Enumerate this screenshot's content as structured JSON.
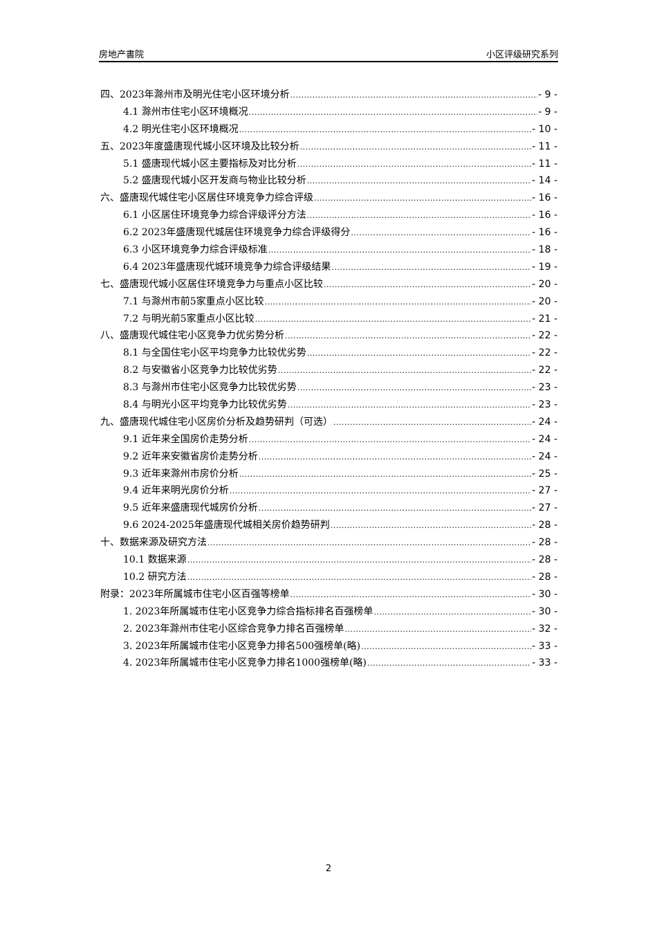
{
  "header": {
    "left": "房地产書院",
    "right": "小区评级研究系列"
  },
  "toc": [
    {
      "level": 1,
      "title": "四、2023年滁州市及明光住宅小区环境分析",
      "page": "- 9 -"
    },
    {
      "level": 2,
      "title": "4.1 滁州市住宅小区环境概况",
      "page": "- 9 -"
    },
    {
      "level": 2,
      "title": "4.2 明光住宅小区环境概况",
      "page": "- 10 -"
    },
    {
      "level": 1,
      "title": "五、2023年度盛唐现代城小区环境及比较分析",
      "page": "- 11 -"
    },
    {
      "level": 2,
      "title": "5.1 盛唐现代城小区主要指标及对比分析",
      "page": "- 11 -"
    },
    {
      "level": 2,
      "title": "5.2 盛唐现代城小区开发商与物业比较分析",
      "page": "- 14 -"
    },
    {
      "level": 1,
      "title": "六、盛唐现代城住宅小区居住环境竞争力综合评级",
      "page": "- 16 -"
    },
    {
      "level": 2,
      "title": "6.1 小区居住环境竞争力综合评级评分方法",
      "page": "- 16 -"
    },
    {
      "level": 2,
      "title": "6.2 2023年盛唐现代城居住环境竞争力综合评级得分",
      "page": "- 16 -"
    },
    {
      "level": 2,
      "title": "6.3 小区环境竞争力综合评级标准",
      "page": "- 18 -"
    },
    {
      "level": 2,
      "title": "6.4 2023年盛唐现代城环境竞争力综合评级结果",
      "page": "- 19 -"
    },
    {
      "level": 1,
      "title": "七、盛唐现代城小区居住环境竞争力与重点小区比较",
      "page": "- 20 -"
    },
    {
      "level": 2,
      "title": "7.1 与滁州市前5家重点小区比较",
      "page": "- 20 -"
    },
    {
      "level": 2,
      "title": "7.2 与明光前5家重点小区比较",
      "page": "- 21 -"
    },
    {
      "level": 1,
      "title": "八、盛唐现代城住宅小区竞争力优劣势分析",
      "page": "- 22 -"
    },
    {
      "level": 2,
      "title": "8.1 与全国住宅小区平均竞争力比较优劣势",
      "page": "- 22 -"
    },
    {
      "level": 2,
      "title": "8.2 与安徽省小区竞争力比较优劣势",
      "page": "- 22 -"
    },
    {
      "level": 2,
      "title": "8.3 与滁州市住宅小区竞争力比较优劣势",
      "page": "- 23 -"
    },
    {
      "level": 2,
      "title": "8.4 与明光小区平均竞争力比较优劣势",
      "page": "- 23 -"
    },
    {
      "level": 1,
      "title": "九、盛唐现代城住宅小区房价分析及趋势研判（可选）",
      "page": "- 24 -"
    },
    {
      "level": 2,
      "title": "9.1 近年来全国房价走势分析",
      "page": "- 24 -"
    },
    {
      "level": 2,
      "title": "9.2 近年来安徽省房价走势分析",
      "page": "- 24 -"
    },
    {
      "level": 2,
      "title": "9.3 近年来滁州市房价分析",
      "page": "- 25 -"
    },
    {
      "level": 2,
      "title": "9.4 近年来明光房价分析",
      "page": "- 27 -"
    },
    {
      "level": 2,
      "title": "9.5 近年来盛唐现代城房价分析",
      "page": "- 27 -"
    },
    {
      "level": 2,
      "title": "9.6 2024-2025年盛唐现代城相关房价趋势研判",
      "page": "- 28 -"
    },
    {
      "level": 1,
      "title": "十、数据来源及研究方法",
      "page": "- 28 -"
    },
    {
      "level": 2,
      "title": "10.1 数据来源",
      "page": "- 28 -"
    },
    {
      "level": 2,
      "title": "10.2 研究方法",
      "page": "- 28 -"
    },
    {
      "level": 1,
      "title": "附录：2023年所属城市住宅小区百强等榜单",
      "page": "- 30 -"
    },
    {
      "level": 2,
      "title": "1. 2023年所属城市住宅小区竞争力综合指标排名百强榜单",
      "page": "- 30 -"
    },
    {
      "level": 2,
      "title": "2. 2023年滁州市住宅小区综合竞争力排名百强榜单",
      "page": "- 32 -"
    },
    {
      "level": 2,
      "title": "3. 2023年所属城市住宅小区竞争力排名500强榜单(略)",
      "page": "- 33 -"
    },
    {
      "level": 2,
      "title": "4. 2023年所属城市住宅小区竞争力排名1000强榜单(略)",
      "page": "- 33 -"
    }
  ],
  "page_number": "2"
}
